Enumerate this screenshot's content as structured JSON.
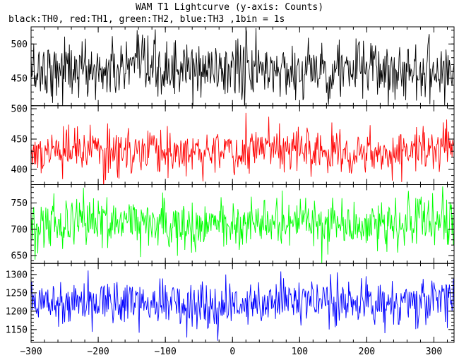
{
  "chart_data": {
    "type": "line",
    "title": "WAM T1 Lightcurve (y-axis: Counts)",
    "subtitle": "black:TH0, red:TH1, green:TH2, blue:TH3 ,1bin = 1s",
    "xlabel": "",
    "ylabel": "",
    "grid": false,
    "legend": "none",
    "x_range": [
      -300,
      330
    ],
    "x_ticks": [
      -300,
      -200,
      -100,
      0,
      100,
      200,
      300
    ],
    "bin_seconds": 1,
    "panels": [
      {
        "series": "TH0",
        "color": "#000000",
        "ylim": [
          410,
          525
        ],
        "y_ticks": [
          450,
          500
        ],
        "mean": 462,
        "noise_sd": 22,
        "samples": [
          [
            -300,
            462
          ],
          [
            -250,
            465
          ],
          [
            -200,
            460
          ],
          [
            -150,
            463
          ],
          [
            -100,
            462
          ],
          [
            -50,
            460
          ],
          [
            0,
            465
          ],
          [
            50,
            462
          ],
          [
            100,
            461
          ],
          [
            150,
            463
          ],
          [
            200,
            462
          ],
          [
            250,
            461
          ],
          [
            300,
            463
          ],
          [
            330,
            462
          ]
        ]
      },
      {
        "series": "TH1",
        "color": "#ff0000",
        "ylim": [
          375,
          505
        ],
        "y_ticks": [
          400,
          450,
          500
        ],
        "mean": 430,
        "noise_sd": 19,
        "samples": [
          [
            -300,
            426
          ],
          [
            -250,
            428
          ],
          [
            -200,
            428
          ],
          [
            -150,
            429
          ],
          [
            -100,
            430
          ],
          [
            -50,
            430
          ],
          [
            0,
            432
          ],
          [
            50,
            432
          ],
          [
            100,
            433
          ],
          [
            150,
            432
          ],
          [
            200,
            431
          ],
          [
            250,
            431
          ],
          [
            300,
            433
          ],
          [
            330,
            440
          ]
        ]
      },
      {
        "series": "TH2",
        "color": "#00ff00",
        "ylim": [
          635,
          785
        ],
        "y_ticks": [
          650,
          700,
          750
        ],
        "mean": 712,
        "noise_sd": 24,
        "samples": [
          [
            -300,
            710
          ],
          [
            -250,
            715
          ],
          [
            -200,
            714
          ],
          [
            -150,
            712
          ],
          [
            -100,
            710
          ],
          [
            -50,
            708
          ],
          [
            0,
            712
          ],
          [
            50,
            712
          ],
          [
            100,
            713
          ],
          [
            150,
            711
          ],
          [
            200,
            710
          ],
          [
            250,
            712
          ],
          [
            300,
            710
          ],
          [
            330,
            712
          ]
        ]
      },
      {
        "series": "TH3",
        "color": "#0000ff",
        "ylim": [
          1115,
          1330
        ],
        "y_ticks": [
          1150,
          1200,
          1250,
          1300
        ],
        "mean": 1225,
        "noise_sd": 32,
        "samples": [
          [
            -300,
            1225
          ],
          [
            -250,
            1232
          ],
          [
            -200,
            1228
          ],
          [
            -150,
            1226
          ],
          [
            -100,
            1225
          ],
          [
            -50,
            1220
          ],
          [
            0,
            1222
          ],
          [
            50,
            1224
          ],
          [
            100,
            1225
          ],
          [
            150,
            1226
          ],
          [
            200,
            1225
          ],
          [
            250,
            1224
          ],
          [
            300,
            1225
          ],
          [
            330,
            1225
          ]
        ]
      }
    ]
  }
}
